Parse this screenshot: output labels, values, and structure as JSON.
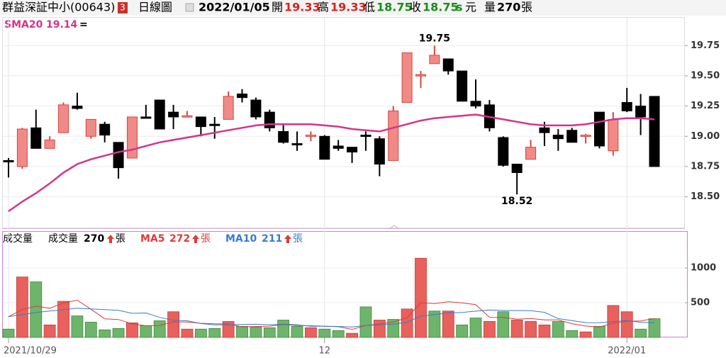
{
  "header": {
    "name": "群益深証中小(00643)",
    "badge": "3",
    "period": "日線圖",
    "date": "2022/01/05",
    "open_label": "開",
    "open": 19.33,
    "high_label": "高",
    "high": 19.33,
    "low_label": "低",
    "low": 18.75,
    "close_label": "收",
    "close": 18.75,
    "unit_s": "s",
    "unit": "元",
    "volume_label": "量",
    "volume": 270,
    "volume_unit": "張"
  },
  "chart_data": [
    {
      "type": "candlestick",
      "categories": [
        "2021/10/29",
        null,
        null,
        null,
        null,
        null,
        null,
        null,
        null,
        null,
        null,
        null,
        null,
        null,
        null,
        null,
        null,
        null,
        null,
        null,
        null,
        null,
        null,
        "12",
        null,
        null,
        null,
        null,
        null,
        null,
        null,
        null,
        null,
        null,
        null,
        null,
        null,
        null,
        null,
        null,
        null,
        null,
        null,
        null,
        null,
        "2022/01",
        null,
        null
      ],
      "open": [
        18.8,
        18.75,
        19.07,
        18.9,
        19.03,
        19.25,
        19.0,
        19.1,
        18.95,
        18.82,
        19.16,
        19.3,
        19.2,
        19.16,
        19.16,
        19.1,
        19.14,
        19.35,
        19.3,
        19.2,
        19.04,
        18.94,
        19.0,
        19.0,
        18.92,
        18.91,
        19.01,
        18.98,
        18.8,
        19.28,
        19.5,
        19.6,
        19.64,
        19.54,
        19.29,
        19.26,
        18.99,
        18.77,
        18.81,
        19.07,
        19.01,
        19.05,
        19.0,
        19.2,
        18.88,
        19.28,
        19.25,
        19.33
      ],
      "high": [
        18.82,
        19.07,
        19.22,
        19.0,
        19.28,
        19.36,
        19.14,
        19.12,
        18.95,
        19.16,
        19.26,
        19.3,
        19.26,
        19.21,
        19.16,
        19.16,
        19.37,
        19.39,
        19.32,
        19.22,
        19.1,
        19.04,
        19.04,
        19.01,
        18.97,
        18.91,
        19.04,
        19.0,
        19.25,
        19.69,
        19.54,
        19.75,
        19.64,
        19.54,
        19.47,
        19.3,
        19.0,
        18.77,
        18.97,
        19.12,
        19.06,
        19.07,
        19.02,
        19.2,
        19.2,
        19.4,
        19.35,
        19.33
      ],
      "low": [
        18.66,
        18.73,
        18.9,
        18.9,
        19.03,
        19.22,
        18.98,
        18.95,
        18.65,
        18.82,
        19.15,
        19.06,
        19.06,
        19.16,
        19.0,
        18.98,
        19.14,
        19.28,
        19.14,
        19.04,
        18.94,
        18.88,
        18.96,
        18.81,
        18.88,
        18.78,
        18.88,
        18.67,
        18.8,
        19.28,
        19.4,
        19.6,
        19.51,
        19.29,
        19.23,
        19.04,
        18.75,
        18.52,
        18.81,
        18.92,
        18.88,
        18.95,
        18.94,
        18.9,
        18.84,
        19.2,
        19.01,
        18.75
      ],
      "close": [
        18.8,
        19.06,
        18.9,
        18.97,
        19.26,
        19.23,
        19.14,
        19.01,
        18.74,
        19.16,
        19.15,
        19.06,
        19.16,
        19.17,
        19.08,
        19.1,
        19.33,
        19.32,
        19.16,
        19.07,
        18.95,
        18.94,
        19.01,
        18.81,
        18.9,
        18.87,
        19.01,
        18.77,
        19.21,
        19.69,
        19.51,
        19.67,
        19.54,
        19.29,
        19.25,
        19.07,
        18.76,
        18.7,
        18.91,
        19.03,
        18.98,
        18.95,
        19.01,
        18.92,
        19.14,
        19.21,
        19.16,
        18.75
      ],
      "up_color": "#f08a86",
      "up_edge": "#d9453f",
      "down_color": "#000000",
      "sma": {
        "name": "SMA20",
        "suffix": "=",
        "color": "#d6338a",
        "values": [
          18.38,
          18.46,
          18.53,
          18.61,
          18.7,
          18.77,
          18.81,
          18.84,
          18.87,
          18.89,
          18.92,
          18.95,
          18.97,
          18.99,
          19.01,
          19.03,
          19.05,
          19.07,
          19.09,
          19.1,
          19.1,
          19.1,
          19.1,
          19.09,
          19.08,
          19.06,
          19.05,
          19.04,
          19.07,
          19.1,
          19.13,
          19.15,
          19.16,
          19.17,
          19.18,
          19.16,
          19.14,
          19.12,
          19.1,
          19.09,
          19.09,
          19.09,
          19.1,
          19.12,
          19.14,
          19.15,
          19.15,
          19.14
        ]
      },
      "ylim": [
        18.24,
        19.98
      ],
      "yticks": [
        {
          "value": 18.5,
          "label": "18.50"
        },
        18.75,
        {
          "value": 19,
          "label": "19.00"
        },
        19.25,
        {
          "value": 19.5,
          "label": "19.50"
        },
        19.75
      ],
      "grid": true
    },
    {
      "type": "bar",
      "title": "成交量",
      "label": "成交量",
      "unit": "張",
      "values": [
        120,
        870,
        800,
        180,
        520,
        310,
        220,
        110,
        130,
        210,
        170,
        240,
        370,
        120,
        120,
        130,
        230,
        160,
        150,
        140,
        250,
        160,
        140,
        120,
        100,
        60,
        440,
        250,
        260,
        410,
        1140,
        380,
        380,
        180,
        280,
        230,
        370,
        250,
        230,
        180,
        230,
        100,
        80,
        160,
        460,
        370,
        120,
        270
      ],
      "colors": [
        "#6db56a",
        "#e8615c",
        "#6db56a",
        "#e8615c",
        "#e8615c",
        "#6db56a",
        "#6db56a",
        "#6db56a",
        "#6db56a",
        "#e8615c",
        "#6db56a",
        "#6db56a",
        "#e8615c",
        "#e8615c",
        "#6db56a",
        "#6db56a",
        "#e8615c",
        "#6db56a",
        "#6db56a",
        "#6db56a",
        "#6db56a",
        "#6db56a",
        "#e8615c",
        "#6db56a",
        "#6db56a",
        "#e8615c",
        "#6db56a",
        "#e8615c",
        "#6db56a",
        "#e8615c",
        "#e8615c",
        "#6db56a",
        "#e8615c",
        "#6db56a",
        "#6db56a",
        "#e8615c",
        "#6db56a",
        "#e8615c",
        "#e8615c",
        "#e8615c",
        "#6db56a",
        "#6db56a",
        "#e8615c",
        "#6db56a",
        "#e8615c",
        "#e8615c",
        "#6db56a",
        "#6db56a"
      ],
      "series": [
        {
          "name": "MA5",
          "unit": "張",
          "color": "#e03a3a",
          "values": [
            300,
            400,
            450,
            420,
            498,
            536,
            406,
            268,
            258,
            196,
            168,
            172,
            224,
            222,
            204,
            196,
            194,
            152,
            158,
            162,
            186,
            172,
            168,
            162,
            154,
            116,
            172,
            194,
            222,
            284,
            500,
            488,
            514,
            498,
            472,
            290,
            288,
            262,
            272,
            252,
            252,
            198,
            164,
            150,
            206,
            234,
            238,
            272
          ]
        },
        {
          "name": "MA10",
          "unit": "張",
          "color": "#3a7bc8",
          "values": [
            300,
            330,
            360,
            380,
            400,
            420,
            410,
            400,
            390,
            347,
            352,
            289,
            246,
            240,
            200,
            182,
            183,
            188,
            190,
            183,
            191,
            183,
            160,
            160,
            158,
            151,
            172,
            181,
            192,
            219,
            308,
            330,
            354,
            360,
            378,
            395,
            388,
            388,
            385,
            362,
            271,
            243,
            213,
            211,
            229,
            243,
            218,
            211
          ]
        }
      ],
      "ylim": [
        0,
        1520
      ],
      "yticks": [
        500,
        1000
      ],
      "grid": true
    }
  ]
}
